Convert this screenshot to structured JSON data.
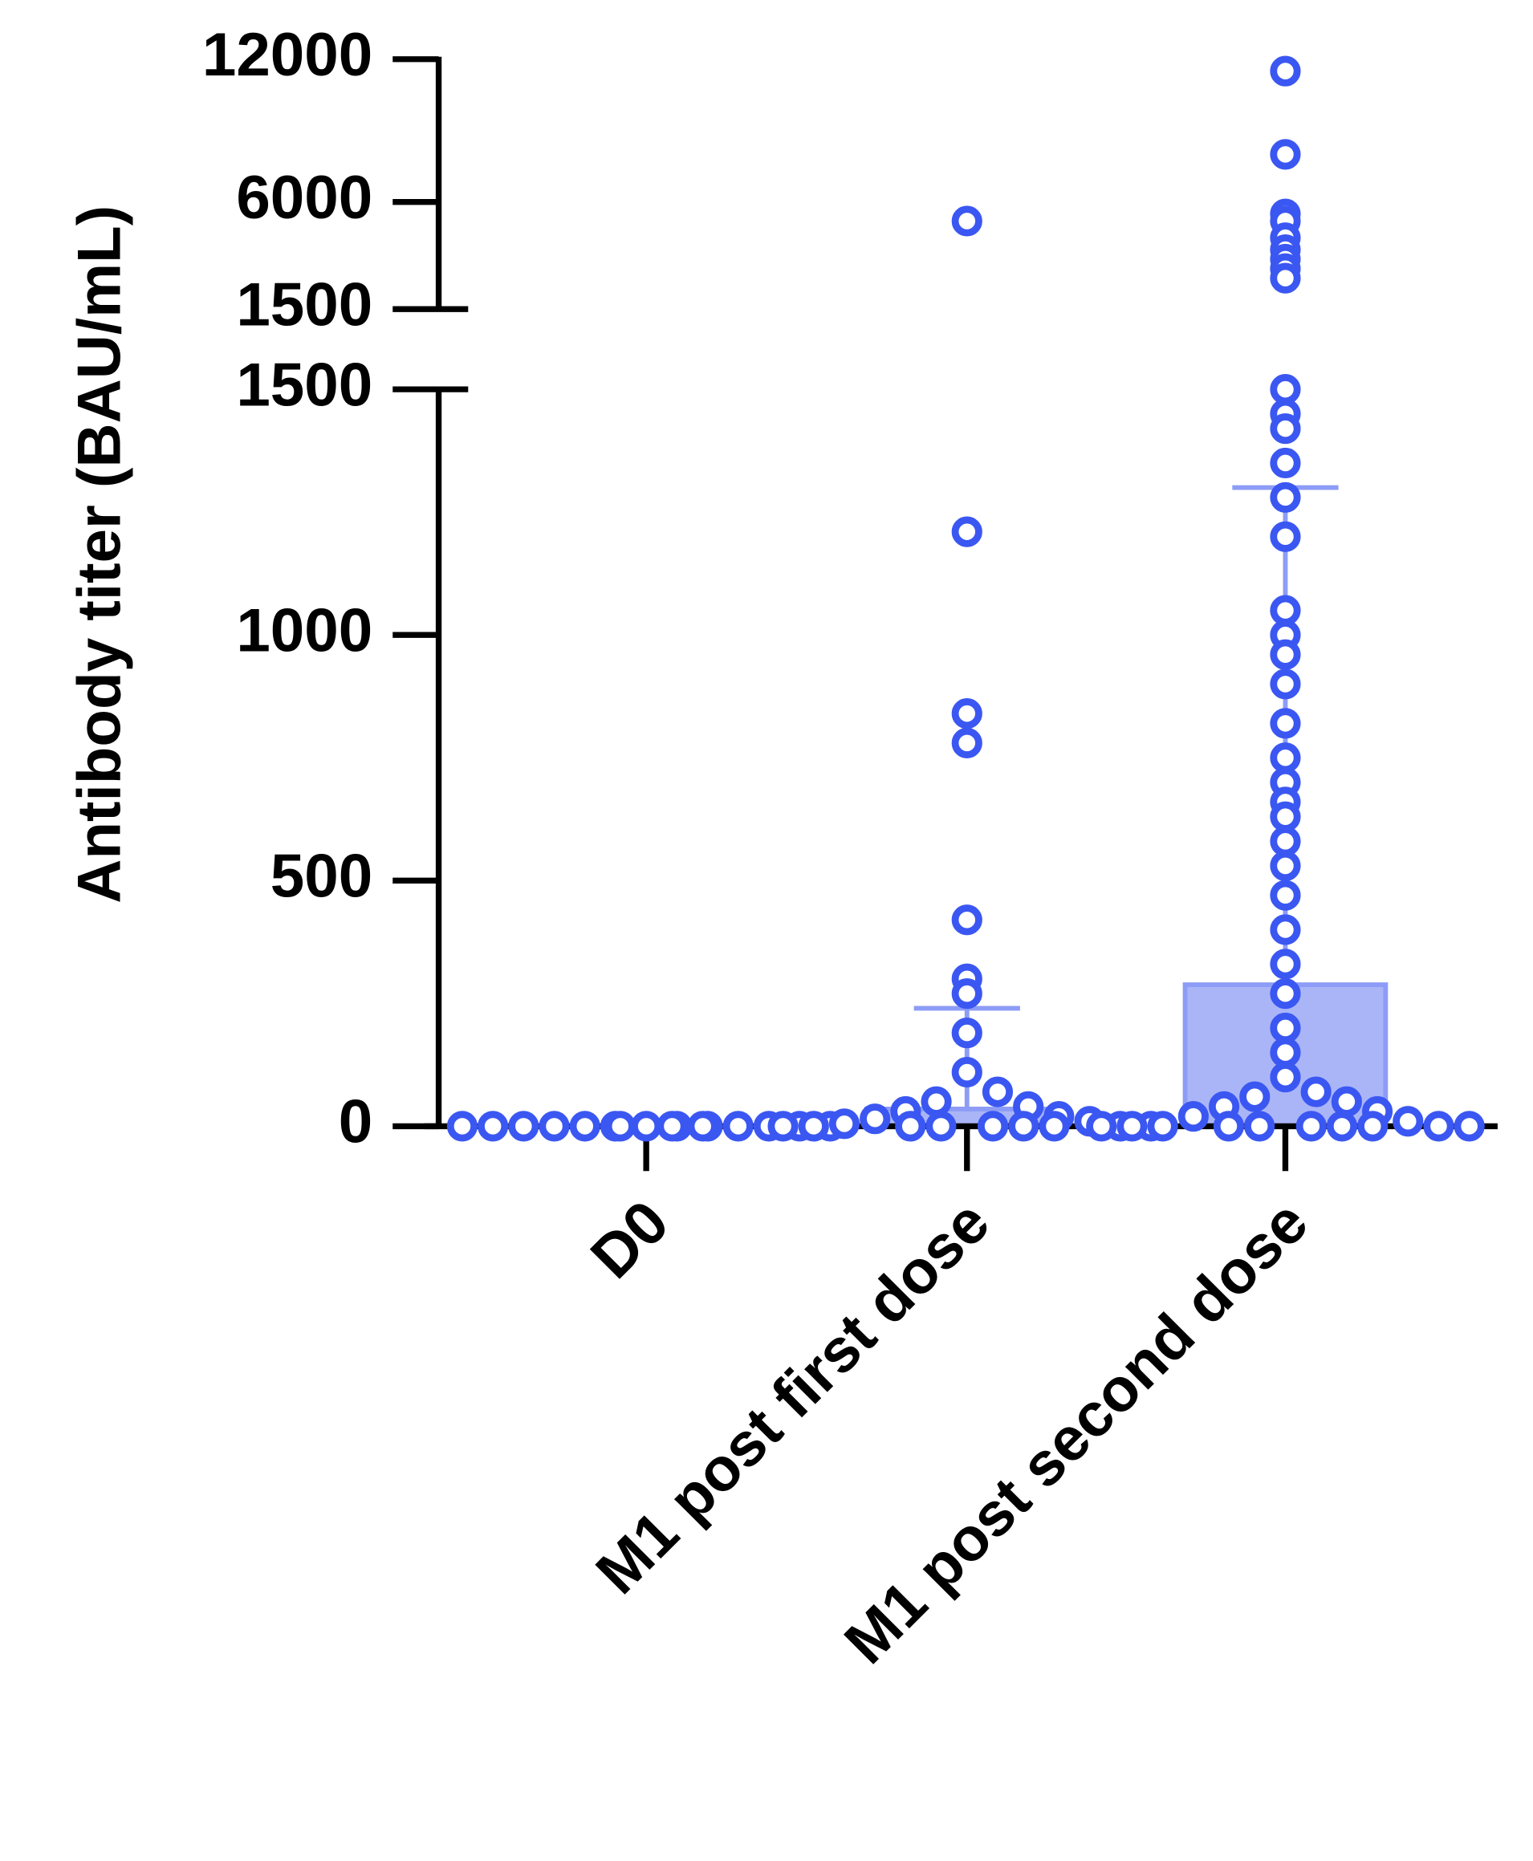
{
  "chart_data": {
    "type": "dotplot",
    "y_label": "Antibody titer (BAU/mL)",
    "categories": [
      "D0",
      "M1 post first dose",
      "M1 post second dose"
    ],
    "segments": [
      {
        "ylim": [
          0,
          1500
        ],
        "yticks": [
          0,
          500,
          1000,
          1500
        ]
      },
      {
        "ylim": [
          1500,
          12000
        ],
        "yticks": [
          1500,
          6000,
          12000
        ]
      }
    ],
    "point_color": "#3b57f2",
    "bar_color": "#8d9cf6",
    "means": [
      0,
      35,
      288
    ],
    "errors": [
      0,
      205,
      1012
    ],
    "points": [
      [
        0,
        0,
        0,
        0,
        0,
        0,
        0,
        0,
        0,
        0,
        0,
        0,
        0,
        0,
        0,
        0
      ],
      [
        5200,
        1210,
        840,
        780,
        420,
        300,
        270,
        190,
        110,
        70,
        50,
        40,
        30,
        20,
        15,
        10,
        5,
        0,
        0,
        0,
        0,
        0,
        0,
        0,
        0,
        0
      ],
      [
        11500,
        8000,
        5500,
        5200,
        4500,
        4000,
        3600,
        3200,
        2800,
        1500,
        1450,
        1420,
        1350,
        1280,
        1200,
        1050,
        1000,
        960,
        900,
        820,
        750,
        700,
        660,
        630,
        580,
        530,
        470,
        400,
        330,
        270,
        200,
        150,
        100,
        70,
        60,
        50,
        40,
        30,
        20,
        10,
        0,
        0,
        0,
        0,
        0,
        0,
        0,
        0,
        0,
        0
      ]
    ]
  }
}
